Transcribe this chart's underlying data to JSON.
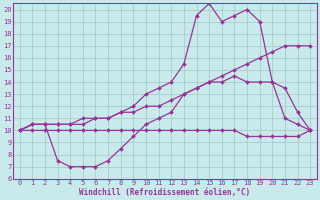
{
  "xlabel": "Windchill (Refroidissement éolien,°C)",
  "bg_color": "#c8eaea",
  "grid_color": "#a8cccc",
  "line_color": "#993399",
  "spine_color": "#993399",
  "xlim": [
    -0.5,
    23.5
  ],
  "ylim": [
    6,
    20.5
  ],
  "xticks": [
    0,
    1,
    2,
    3,
    4,
    5,
    6,
    7,
    8,
    9,
    10,
    11,
    12,
    13,
    14,
    15,
    16,
    17,
    18,
    19,
    20,
    21,
    22,
    23
  ],
  "yticks": [
    6,
    7,
    8,
    9,
    10,
    11,
    12,
    13,
    14,
    15,
    16,
    17,
    18,
    19,
    20
  ],
  "series": [
    {
      "x": [
        0,
        1,
        2,
        3,
        4,
        5,
        6,
        7,
        8,
        9,
        10,
        11,
        12,
        13,
        14,
        15,
        16,
        17,
        18,
        19,
        20,
        21,
        22,
        23
      ],
      "y": [
        10,
        10.5,
        10.5,
        7.5,
        7.0,
        7.0,
        7.0,
        7.5,
        8.5,
        9.5,
        10.5,
        11.0,
        11.5,
        13.0,
        13.5,
        14.0,
        14.0,
        14.5,
        14.0,
        14.0,
        14.0,
        11.0,
        10.5,
        10.0
      ]
    },
    {
      "x": [
        0,
        1,
        2,
        3,
        4,
        5,
        6,
        7,
        8,
        9,
        10,
        11,
        12,
        13,
        14,
        15,
        16,
        17,
        18,
        19,
        20,
        21,
        22,
        23
      ],
      "y": [
        10,
        10.5,
        10.5,
        10.5,
        10.5,
        11.0,
        11.0,
        11.0,
        11.5,
        11.5,
        12.0,
        12.0,
        12.5,
        13.0,
        13.5,
        14.0,
        14.5,
        15.0,
        15.5,
        16.0,
        16.5,
        17.0,
        17.0,
        17.0
      ]
    },
    {
      "x": [
        0,
        1,
        2,
        3,
        4,
        5,
        6,
        7,
        8,
        9,
        10,
        11,
        12,
        13,
        14,
        15,
        16,
        17,
        18,
        19,
        20,
        21,
        22,
        23
      ],
      "y": [
        10,
        10,
        10,
        10,
        10,
        10,
        10,
        10,
        10,
        10,
        10,
        10,
        10,
        10,
        10,
        10,
        10,
        10,
        9.5,
        9.5,
        9.5,
        9.5,
        9.5,
        10
      ]
    },
    {
      "x": [
        0,
        1,
        2,
        3,
        4,
        5,
        6,
        7,
        8,
        9,
        10,
        11,
        12,
        13,
        14,
        15,
        16,
        17,
        18,
        19,
        20,
        21,
        22,
        23
      ],
      "y": [
        10,
        10.5,
        10.5,
        10.5,
        10.5,
        10.5,
        11.0,
        11.0,
        11.5,
        12.0,
        13.0,
        13.5,
        14.0,
        15.5,
        19.5,
        20.5,
        19.0,
        19.5,
        20.0,
        19.0,
        14.0,
        13.5,
        11.5,
        10.0
      ]
    }
  ],
  "tick_fontsize": 5,
  "xlabel_fontsize": 5.5,
  "marker": "D",
  "markersize": 2.0,
  "linewidth": 0.9
}
